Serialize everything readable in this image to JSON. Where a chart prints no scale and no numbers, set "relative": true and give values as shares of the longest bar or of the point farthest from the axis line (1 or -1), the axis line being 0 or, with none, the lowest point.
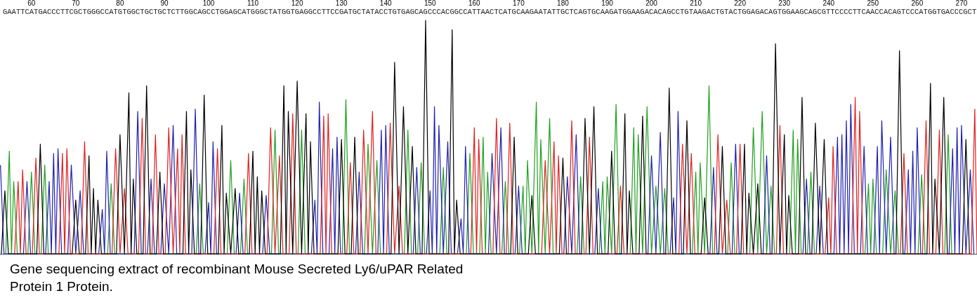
{
  "chart_data": {
    "type": "line",
    "relative": true,
    "xlim": [
      52.9,
      273.5
    ],
    "xticks": [
      60,
      70,
      80,
      90,
      100,
      110,
      120,
      130,
      140,
      150,
      160,
      170,
      180,
      190,
      200,
      210,
      220,
      230,
      240,
      250,
      260,
      270
    ],
    "annotations": [
      "GAATTCATGACCCTTCGCTGGGCCATGTGGCTGCTGCTCTTGGCAGCCTGGAGCATGGGCTATGGTGAGGCCTTCCGATGCTATACCTGTGAGCAGCCCACGGCCATTAACTCATGCAAGAATATTGCTCAGTGCAAGATGGAAGACACAGCCTGTAAGACTGTACTGGAGACAGTGGAAGCAGCGTTCCCCTTCAACCACAGTCCCATGGTGACCCGCT",
      "Gene sequencing extract of recombinant Mouse Secreted Ly6/uPAR Related\nProtein 1 Protein."
    ],
    "series": [
      {
        "color": "#20a020",
        "x": [
          54.2,
          55,
          55.5,
          56,
          56.8,
          59.2,
          60,
          60.8,
          62.2,
          63,
          63.8,
          77.2,
          78,
          78.8,
          97.2,
          98,
          98.8,
          104.2,
          105,
          105.8,
          107.2,
          108,
          108.8,
          114.2,
          115,
          115.8,
          120.2,
          121,
          121.8,
          130.2,
          131,
          131.8,
          135.2,
          136,
          137,
          138,
          138.8,
          144.2,
          145,
          145.8,
          147.2,
          148,
          148.8,
          152.2,
          153,
          153.8,
          158.2,
          159,
          159.8,
          161.2,
          162,
          162.5,
          163,
          163.8,
          166.2,
          167,
          167.8,
          170.2,
          171,
          171.5,
          172,
          173,
          174,
          174.5,
          175,
          176,
          177,
          177.8,
          183.2,
          184,
          184.8,
          188.2,
          189,
          189.5,
          190,
          191,
          192,
          192.8,
          195.2,
          196,
          196.5,
          197,
          198,
          199,
          200,
          201,
          202,
          203,
          203.8,
          209.2,
          210,
          210.5,
          211,
          212,
          213,
          213.8,
          217.2,
          218,
          218.8,
          222.2,
          223,
          224,
          225,
          226,
          227,
          227.8,
          231.2,
          232,
          232.5,
          233,
          233.8,
          235.2,
          236,
          236.8,
          248.2,
          249,
          249.5,
          250,
          250.8,
          252.2,
          253,
          254,
          255,
          255.8,
          260.2,
          261,
          261.8,
          266.2,
          267,
          267.8
        ],
        "values": [
          0,
          0.44,
          0,
          0.31,
          0,
          0,
          0.35,
          0,
          0,
          0.38,
          0,
          0,
          0.3,
          0,
          0,
          0.3,
          0,
          0,
          0.4,
          0,
          0,
          0.32,
          0,
          0,
          0.53,
          0,
          0,
          0.53,
          0,
          0,
          0.66,
          0,
          0,
          0.47,
          0,
          0.4,
          0,
          0,
          0.53,
          0,
          0,
          0.39,
          0,
          0,
          0.37,
          0,
          0,
          0.43,
          0,
          0,
          0.5,
          0,
          0.35,
          0,
          0,
          0.31,
          0,
          0,
          0.29,
          0,
          0.4,
          0,
          0.65,
          0,
          0.49,
          0,
          0.58,
          0,
          0,
          0.33,
          0,
          0,
          0.31,
          0,
          0.33,
          0,
          0.64,
          0,
          0,
          0.54,
          0,
          0.51,
          0,
          0.63,
          0,
          0.29,
          0,
          0.28,
          0,
          0,
          0.35,
          0,
          0.39,
          0,
          0.72,
          0,
          0,
          0.39,
          0,
          0,
          0.54,
          0,
          0.61,
          0,
          0.29,
          0,
          0,
          0.53,
          0,
          0.49,
          0,
          0,
          0.35,
          0,
          0,
          0.3,
          0,
          0.32,
          0,
          0,
          0.36,
          0,
          0.27,
          0,
          0,
          0.34,
          0,
          0,
          0.51,
          0
        ]
      },
      {
        "color": "#2020b0",
        "x": [
          53,
          53.8,
          58.2,
          59,
          59.8,
          63.2,
          64,
          64.5,
          65,
          65.5,
          66,
          66.8,
          68.2,
          69,
          70,
          71,
          71.8,
          75.2,
          76,
          76.5,
          77,
          77.8,
          83.2,
          84,
          84.8,
          86.2,
          87,
          87.8,
          89.2,
          90,
          91,
          92,
          92.8,
          96.2,
          97,
          97.8,
          99.2,
          100,
          100.5,
          101,
          101.8,
          106.2,
          107,
          107.8,
          112.2,
          113,
          113.8,
          123.2,
          124,
          124.5,
          125,
          125.8,
          127.2,
          128,
          128.5,
          129,
          129.8,
          133.2,
          134,
          134.8,
          138.2,
          139,
          139.5,
          140,
          140.8,
          146.2,
          147,
          147.8,
          149.2,
          150,
          150.5,
          151,
          151.5,
          152,
          153,
          154,
          154.8,
          156.2,
          157,
          157.5,
          158,
          158.8,
          163.2,
          164,
          165,
          166,
          166.8,
          169.2,
          170,
          170.8,
          180.2,
          181,
          182,
          183,
          183.8,
          187.2,
          188,
          188.8,
          199.2,
          200,
          201,
          202,
          202.8,
          204.2,
          205,
          205.5,
          206,
          206.8,
          213.2,
          214,
          214.8,
          218.2,
          219,
          219.8,
          225.2,
          226,
          226.8,
          234.2,
          235,
          235.8,
          237.2,
          238,
          238.8,
          241.2,
          242,
          242.5,
          243,
          243.5,
          244,
          244.5,
          245,
          245.8,
          247.2,
          248,
          248.8,
          250.2,
          251,
          251.5,
          252,
          253,
          254,
          254.8,
          257.2,
          258,
          258.5,
          259,
          259.5,
          260,
          260.8,
          267.2,
          268,
          268.5,
          269,
          269.5,
          270,
          271,
          272,
          272.8
        ],
        "values": [
          0.38,
          0,
          0,
          0.31,
          0,
          0,
          0.31,
          0,
          0.43,
          0,
          0.45,
          0,
          0,
          0.38,
          0,
          0.27,
          0,
          0,
          0.19,
          0,
          0.44,
          0,
          0,
          0.61,
          0,
          0,
          0.32,
          0,
          0,
          0.3,
          0,
          0.55,
          0,
          0,
          0.62,
          0,
          0,
          0.22,
          0,
          0.48,
          0,
          0,
          0.26,
          0,
          0,
          0.25,
          0,
          0,
          0.23,
          0,
          0.65,
          0,
          0,
          0.45,
          0,
          0.5,
          0,
          0,
          0.35,
          0,
          0,
          0.53,
          0,
          0.55,
          0,
          0,
          0.37,
          0,
          0,
          0.27,
          0,
          0.63,
          0,
          0.55,
          0,
          0.48,
          0,
          0,
          0.15,
          0,
          0.46,
          0,
          0,
          0.43,
          0,
          0.54,
          0,
          0,
          0.29,
          0,
          0,
          0.33,
          0,
          0.51,
          0,
          0,
          0.28,
          0,
          0,
          0.42,
          0,
          0.52,
          0,
          0,
          0.24,
          0,
          0.61,
          0,
          0,
          0.37,
          0,
          0,
          0.47,
          0,
          0,
          0.42,
          0,
          0,
          0.32,
          0,
          0,
          0.29,
          0,
          0,
          0.5,
          0,
          0.51,
          0,
          0.57,
          0,
          0.64,
          0,
          0,
          0.46,
          0,
          0,
          0.46,
          0,
          0.57,
          0,
          0.5,
          0,
          0,
          0.36,
          0,
          0.44,
          0,
          0.54,
          0,
          0,
          0.45,
          0,
          0.54,
          0,
          0.55,
          0,
          0.36,
          0
        ]
      },
      {
        "color": "#e02020",
        "x": [
          56.2,
          57,
          57.5,
          58,
          58.8,
          60.2,
          61,
          61.8,
          66.2,
          67,
          67.5,
          68,
          68.8,
          71.2,
          72,
          72.8,
          78.2,
          79,
          80,
          81,
          81.8,
          84.2,
          85,
          85.8,
          87.2,
          88,
          88.8,
          90.2,
          91,
          92,
          93,
          93.5,
          94,
          94.8,
          101.2,
          102,
          102.8,
          108.2,
          109,
          109.8,
          113.2,
          114,
          115,
          116,
          116.8,
          118.2,
          119,
          119.8,
          125.2,
          126,
          126.5,
          127,
          127.8,
          131.2,
          132,
          132.8,
          134.2,
          135,
          136,
          137,
          137.8,
          140.2,
          141,
          142,
          143,
          143.8,
          159.2,
          160,
          160.5,
          161,
          161.8,
          164.2,
          165,
          165.8,
          167.2,
          168,
          168.8,
          175.2,
          176,
          177,
          178,
          178.5,
          179,
          179.8,
          181.2,
          182,
          182.8,
          185.2,
          186,
          186.8,
          192.2,
          193,
          193.8,
          206.2,
          207,
          208,
          209,
          209.8,
          214.2,
          215,
          216,
          217,
          217.8,
          219.2,
          220,
          220.8,
          228.2,
          229,
          229.8,
          239.2,
          240,
          240.5,
          241,
          241.8,
          245.2,
          246,
          246.5,
          247,
          247.8,
          256.2,
          257,
          257.8,
          261.2,
          262,
          262.8,
          264.2,
          265,
          265.8,
          272.2,
          273,
          273.5
        ],
        "values": [
          0,
          0.31,
          0,
          0.36,
          0,
          0,
          0.41,
          0,
          0,
          0.43,
          0,
          0.45,
          0,
          0,
          0.48,
          0,
          0,
          0.45,
          0,
          0.28,
          0,
          0,
          0.58,
          0,
          0,
          0.51,
          0,
          0,
          0.54,
          0,
          0.45,
          0,
          0.51,
          0,
          0,
          0.45,
          0,
          0,
          0.43,
          0,
          0,
          0.54,
          0,
          0.42,
          0,
          0,
          0.6,
          0,
          0,
          0.59,
          0,
          0.6,
          0,
          0,
          0.39,
          0,
          0,
          0.53,
          0,
          0.61,
          0,
          0,
          0.56,
          0,
          0.29,
          0,
          0,
          0.54,
          0,
          0.49,
          0,
          0,
          0.58,
          0,
          0,
          0.56,
          0,
          0,
          0.4,
          0,
          0.48,
          0,
          0.42,
          0,
          0,
          0.57,
          0,
          0,
          0.5,
          0,
          0,
          0.29,
          0,
          0,
          0.47,
          0,
          0.43,
          0,
          0,
          0.51,
          0,
          0.23,
          0,
          0,
          0.47,
          0,
          0,
          0.55,
          0,
          0,
          0.24,
          0,
          0.46,
          0,
          0,
          0.67,
          0,
          0.61,
          0,
          0,
          0.43,
          0,
          0,
          0.57,
          0,
          0,
          0.53,
          0,
          0,
          0.62,
          0
        ]
      },
      {
        "color": "#000000",
        "x": [
          53.2,
          54,
          54.8,
          61.2,
          62,
          62.8,
          69.2,
          70,
          70.8,
          72.2,
          73,
          73.5,
          74,
          74.5,
          75,
          75.8,
          79.2,
          80,
          81,
          82,
          82.5,
          83,
          83.8,
          85.2,
          86,
          86.8,
          88.2,
          89,
          89.8,
          94.2,
          95,
          95.5,
          96,
          96.8,
          98.2,
          99,
          99.8,
          102.2,
          103,
          103.5,
          104,
          105,
          106,
          106.8,
          109.2,
          110,
          110.5,
          111,
          111.5,
          112,
          112.8,
          116.2,
          117,
          117.5,
          118,
          119,
          120,
          121,
          122,
          122.5,
          123,
          123.8,
          129.2,
          130,
          130.8,
          132.2,
          133,
          133.8,
          141.2,
          142,
          143,
          144,
          145,
          146,
          146.8,
          148.2,
          149,
          149.8,
          154.2,
          155,
          155.5,
          156,
          156.8,
          168.2,
          169,
          169.8,
          172.2,
          173,
          173.8,
          179.2,
          180,
          180.8,
          184.2,
          185,
          186,
          187,
          187.8,
          190.2,
          191,
          191.8,
          193.2,
          194,
          194.5,
          195,
          195.8,
          197.2,
          198,
          198.8,
          203.2,
          204,
          204.8,
          207.2,
          208,
          208.8,
          211.2,
          212,
          212.8,
          215.2,
          216,
          216.8,
          220.2,
          221,
          221.5,
          222,
          223,
          224,
          224.8,
          227.2,
          228,
          229,
          230,
          230.5,
          231,
          231.8,
          233.2,
          234,
          234.8,
          236.2,
          237,
          238,
          239,
          239.8,
          255.2,
          256,
          256.8,
          262.2,
          263,
          263.5,
          264,
          265,
          266,
          266.8,
          270.2,
          271,
          271.8
        ],
        "values": [
          0,
          0.27,
          0,
          0,
          0.47,
          0,
          0,
          0.23,
          0,
          0,
          0.42,
          0,
          0.28,
          0,
          0.23,
          0,
          0,
          0.51,
          0,
          0.69,
          0,
          0.32,
          0,
          0,
          0.72,
          0,
          0,
          0.35,
          0,
          0,
          0.61,
          0,
          0.36,
          0,
          0,
          0.68,
          0,
          0,
          0.55,
          0,
          0.26,
          0,
          0.28,
          0,
          0,
          0.44,
          0,
          0.33,
          0,
          0.27,
          0,
          0,
          0.72,
          0,
          0.61,
          0,
          0.74,
          0,
          0.6,
          0,
          0.48,
          0,
          0,
          0.49,
          0,
          0,
          0.5,
          0,
          0,
          0.82,
          0,
          0.63,
          0,
          0.46,
          0,
          0,
          1,
          0,
          0,
          0.96,
          0,
          0.23,
          0,
          0,
          0.5,
          0,
          0,
          0.25,
          0,
          0,
          0.41,
          0,
          0,
          0.58,
          0,
          0.63,
          0,
          0,
          0.44,
          0,
          0,
          0.6,
          0,
          0.27,
          0,
          0,
          0.59,
          0,
          0,
          0.71,
          0,
          0,
          0.57,
          0,
          0,
          0.24,
          0,
          0,
          0.46,
          0,
          0,
          0.47,
          0,
          0.26,
          0,
          0.3,
          0,
          0,
          0.9,
          0,
          0.51,
          0,
          0.25,
          0,
          0,
          0.67,
          0,
          0,
          0.56,
          0,
          0.49,
          0,
          0,
          0.87,
          0,
          0,
          0.73,
          0,
          0.32,
          0,
          0.67,
          0,
          0,
          0.49,
          0
        ]
      }
    ]
  }
}
